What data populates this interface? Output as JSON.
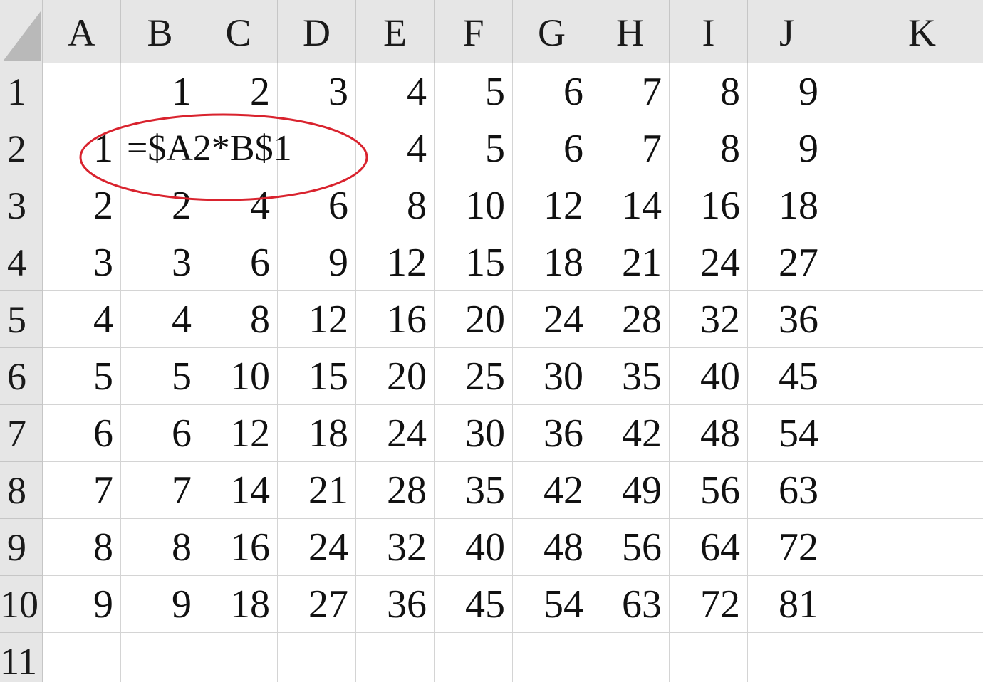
{
  "columns": [
    "A",
    "B",
    "C",
    "D",
    "E",
    "F",
    "G",
    "H",
    "I",
    "J",
    "K"
  ],
  "rows": [
    {
      "header": "1",
      "cells": [
        "",
        "1",
        "2",
        "3",
        "4",
        "5",
        "6",
        "7",
        "8",
        "9",
        ""
      ]
    },
    {
      "header": "2",
      "cells": [
        "1",
        "=$A2*B$1",
        "",
        "",
        "4",
        "5",
        "6",
        "7",
        "8",
        "9",
        ""
      ]
    },
    {
      "header": "3",
      "cells": [
        "2",
        "2",
        "4",
        "6",
        "8",
        "10",
        "12",
        "14",
        "16",
        "18",
        ""
      ]
    },
    {
      "header": "4",
      "cells": [
        "3",
        "3",
        "6",
        "9",
        "12",
        "15",
        "18",
        "21",
        "24",
        "27",
        ""
      ]
    },
    {
      "header": "5",
      "cells": [
        "4",
        "4",
        "8",
        "12",
        "16",
        "20",
        "24",
        "28",
        "32",
        "36",
        ""
      ]
    },
    {
      "header": "6",
      "cells": [
        "5",
        "5",
        "10",
        "15",
        "20",
        "25",
        "30",
        "35",
        "40",
        "45",
        ""
      ]
    },
    {
      "header": "7",
      "cells": [
        "6",
        "6",
        "12",
        "18",
        "24",
        "30",
        "36",
        "42",
        "48",
        "54",
        ""
      ]
    },
    {
      "header": "8",
      "cells": [
        "7",
        "7",
        "14",
        "21",
        "28",
        "35",
        "42",
        "49",
        "56",
        "63",
        ""
      ]
    },
    {
      "header": "9",
      "cells": [
        "8",
        "8",
        "16",
        "24",
        "32",
        "40",
        "48",
        "56",
        "64",
        "72",
        ""
      ]
    },
    {
      "header": "10",
      "cells": [
        "9",
        "9",
        "18",
        "27",
        "36",
        "45",
        "54",
        "63",
        "72",
        "81",
        ""
      ]
    },
    {
      "header": "11",
      "cells": [
        "",
        "",
        "",
        "",
        "",
        "",
        "",
        "",
        "",
        "",
        ""
      ]
    }
  ],
  "formula_cell": {
    "ref": "B2",
    "text": "=$A2*B$1"
  },
  "colors": {
    "header_bg": "#e6e6e6",
    "gridline": "#d4d4d4",
    "annotation": "#d9232e"
  }
}
